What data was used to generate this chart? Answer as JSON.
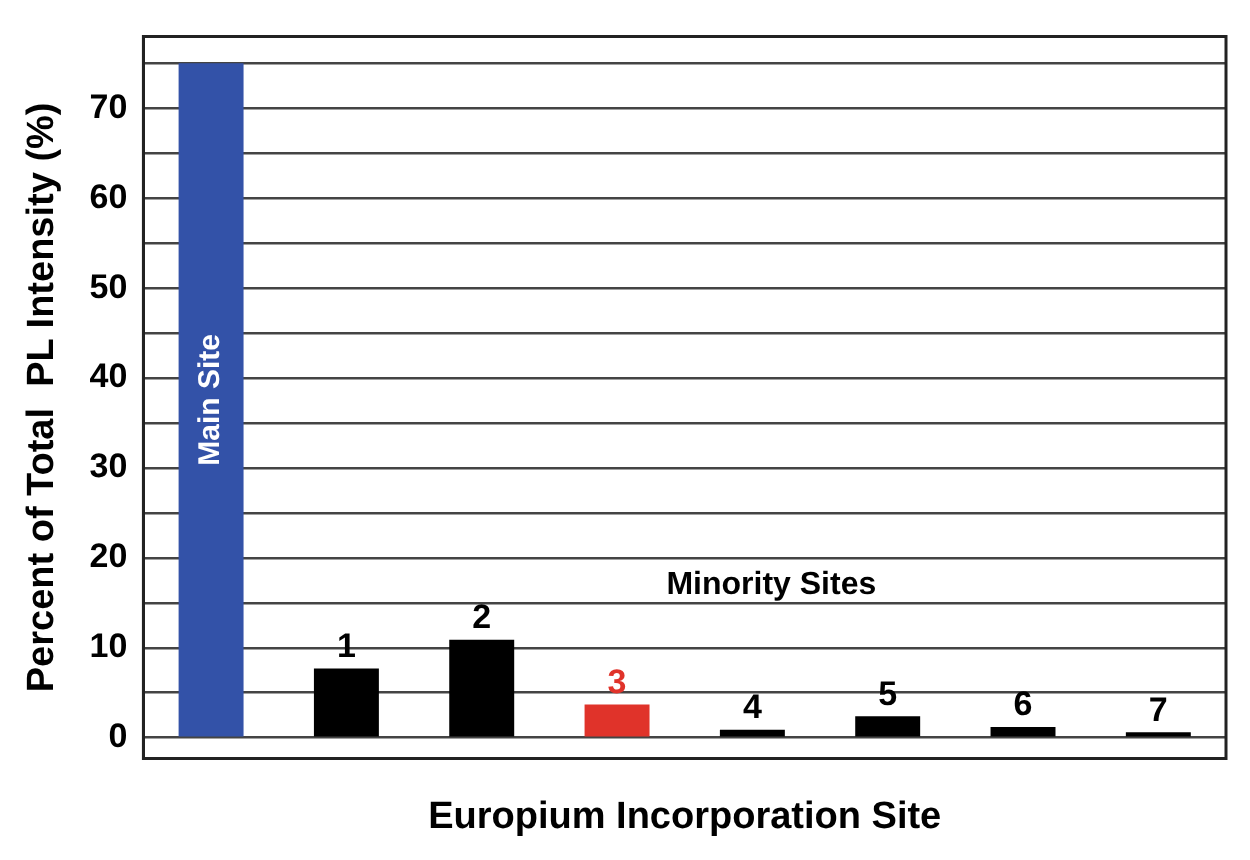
{
  "chart_data": {
    "type": "bar",
    "xlabel": "Europium Incorporation Site",
    "ylabel": "Percent of Total  PL Intensity (%)",
    "categories": [
      "Main Site",
      "1",
      "2",
      "3",
      "4",
      "5",
      "6",
      "7"
    ],
    "values": [
      75,
      7.7,
      10.9,
      3.7,
      0.9,
      2.4,
      1.2,
      0.6
    ],
    "colors": [
      "#3352a8",
      "#000000",
      "#000000",
      "#e0332a",
      "#000000",
      "#000000",
      "#000000",
      "#000000"
    ],
    "ylim": [
      -2.3,
      78
    ],
    "yticks": [
      0,
      {
        "value": 5,
        "label": null
      },
      10,
      {
        "value": 15,
        "label": null
      },
      20,
      {
        "value": 25,
        "label": null
      },
      30,
      {
        "value": 35,
        "label": null
      },
      40,
      {
        "value": 45,
        "label": null
      },
      50,
      {
        "value": 55,
        "label": null
      },
      60,
      {
        "value": 65,
        "label": null
      },
      70,
      {
        "value": 75,
        "label": null
      }
    ],
    "annotations": [
      "Minority Sites"
    ],
    "grid": "y",
    "tick_labels": "y"
  }
}
